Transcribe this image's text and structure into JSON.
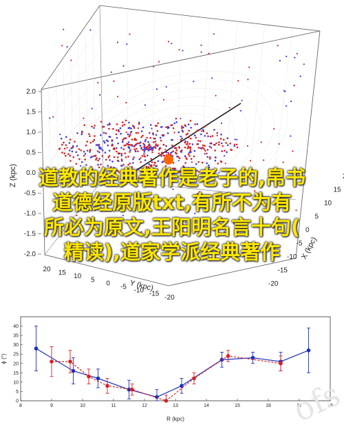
{
  "chart_data": [
    {
      "type": "scatter",
      "subtype": "3d-scatter",
      "xlabel": "X (kpc)",
      "ylabel": "Y (kpc)",
      "zlabel": "Z (kpc)",
      "x_ticks": [
        "-20",
        "-15",
        "-10",
        "-5",
        "0",
        "5",
        "10",
        "15",
        "20"
      ],
      "y_ticks": [
        "20",
        "15",
        "10",
        "5",
        "0",
        "-5",
        "-10",
        "-15",
        "-20"
      ],
      "z_ticks": [
        "2.0",
        "1.5",
        "1.0",
        "0.5",
        "0.0",
        "-0.5",
        "-1.0",
        "-1.5",
        "-2.0"
      ],
      "grid": true,
      "series": [
        {
          "name": "",
          "color": "#d62020"
        },
        {
          "name": "",
          "color": "#3b3be0"
        }
      ],
      "center_marker_color": "#ff6600"
    },
    {
      "type": "line",
      "xlabel": "R (kpc)",
      "ylabel": "ϕ (°)",
      "xlim": [
        8,
        18
      ],
      "ylim": [
        0,
        45
      ],
      "x_ticks": [
        "8",
        "9",
        "10",
        "11",
        "12",
        "13",
        "14",
        "15",
        "16",
        "17",
        "18"
      ],
      "y_ticks": [
        "0",
        "5",
        "10",
        "15",
        "20",
        "25",
        "30",
        "35",
        "40"
      ],
      "series": [
        {
          "name": "",
          "color": "#1a2fbf",
          "style": "solid",
          "x": [
            8.5,
            9.7,
            10.5,
            11.5,
            12.4,
            13.2,
            14.5,
            15.5,
            16.4,
            17.3
          ],
          "y": [
            28,
            16,
            12,
            6,
            2,
            8,
            22,
            23,
            21,
            27
          ],
          "err": [
            12,
            7,
            5,
            5,
            4,
            4,
            4,
            3,
            5,
            12
          ]
        },
        {
          "name": "",
          "color": "#d82020",
          "style": "dashed",
          "x": [
            9.0,
            9.6,
            10.2,
            10.8,
            11.6,
            12.7,
            13.6,
            14.7,
            16.4
          ],
          "y": [
            21,
            21,
            13,
            8,
            6,
            0,
            12,
            24,
            20
          ],
          "err": [
            8,
            6,
            4,
            4,
            3,
            3,
            3,
            3,
            4
          ]
        }
      ]
    }
  ],
  "overlay": {
    "lines": [
      "道教的经典著作是老子的,帛书",
      "道德经原版txt,有所不为有",
      "所必为原文,王阳明名言十句(",
      "精读),道家学派经典著作"
    ]
  },
  "watermark": "ofs"
}
